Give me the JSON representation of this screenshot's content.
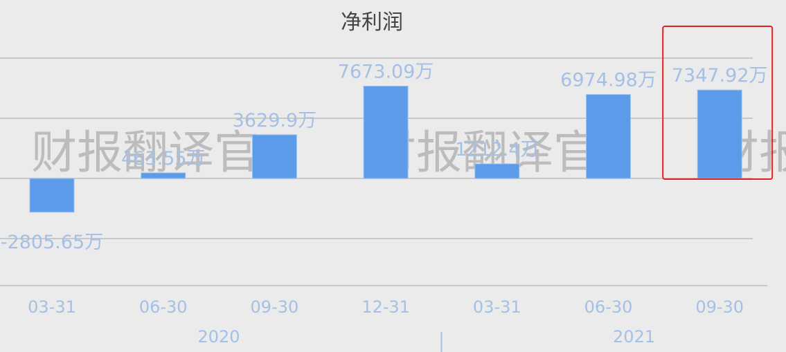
{
  "chart_data": {
    "type": "bar",
    "title": "净利润",
    "categories": [
      "03-31",
      "06-30",
      "09-30",
      "12-31",
      "03-31",
      "06-30",
      "09-30"
    ],
    "groups": [
      {
        "label": "2020",
        "categories": [
          "03-31",
          "06-30",
          "09-30",
          "12-31"
        ]
      },
      {
        "label": "2021",
        "categories": [
          "03-31",
          "06-30",
          "09-30"
        ]
      }
    ],
    "values": [
      -2805.65,
      463.55,
      3629.9,
      7673.09,
      1212.4,
      6974.98,
      7347.92
    ],
    "data_labels": [
      "-2805.65万",
      "463.55万",
      "3629.9万",
      "7673.09万",
      "1212.4万",
      "6974.98万",
      "7347.92万"
    ],
    "unit": "万",
    "ylim": [
      -8900,
      10000
    ],
    "gridlines": [
      10000,
      5000,
      0,
      -5000
    ],
    "grid": true,
    "highlighted_category_index": 6,
    "colors": {
      "bar": "#5b9be9",
      "label": "#a4c0e6",
      "grid": "#c8c8c8",
      "highlight": "#e02020",
      "background": "#ebebeb",
      "watermark": "#b4b4b4"
    }
  },
  "watermark": "财报翻译官"
}
